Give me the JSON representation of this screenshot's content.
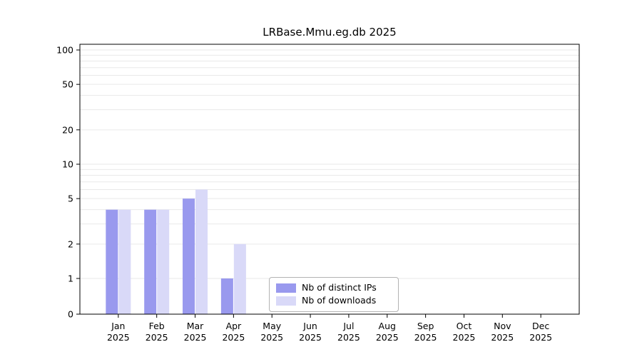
{
  "chart_data": {
    "type": "bar",
    "title": "LRBase.Mmu.eg.db 2025",
    "categories": [
      "Jan 2025",
      "Feb 2025",
      "Mar 2025",
      "Apr 2025",
      "May 2025",
      "Jun 2025",
      "Jul 2025",
      "Aug 2025",
      "Sep 2025",
      "Oct 2025",
      "Nov 2025",
      "Dec 2025"
    ],
    "series": [
      {
        "name": "Nb of distinct IPs",
        "color": "#9999ee",
        "values": [
          4,
          4,
          5,
          1,
          0,
          0,
          0,
          0,
          0,
          0,
          0,
          0
        ]
      },
      {
        "name": "Nb of downloads",
        "color": "#d9d9f8",
        "values": [
          4,
          4,
          6,
          2,
          0,
          0,
          0,
          0,
          0,
          0,
          0,
          0
        ]
      }
    ],
    "y_ticks": [
      0,
      1,
      2,
      5,
      10,
      20,
      50,
      100
    ],
    "ylim": [
      0,
      100
    ],
    "yscale": "log-like",
    "grid": "horizontal",
    "grid_color": "#e9e9e9",
    "axis_color": "#000000",
    "background": "#ffffff",
    "legend_position": "lower-center-inside"
  }
}
